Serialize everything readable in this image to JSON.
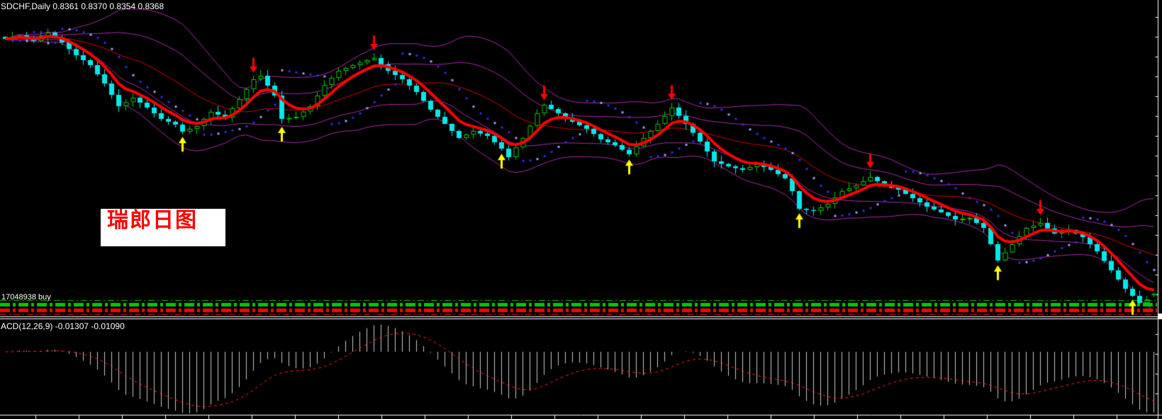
{
  "window": {
    "title_overlay": "SDCHF,Daily 0.8361 0.8370 0.8354 0.8368"
  },
  "main_chart": {
    "order_label": "17048938 buy",
    "annotation_text": "瑞郎日图"
  },
  "macd_panel": {
    "label": "ACD(12,26,9) -0.01307 -0.01090"
  },
  "colors": {
    "background": "#000000",
    "bull_candle": "#00c800",
    "bear_candle": "#00e8e8",
    "ma_thick_red": "#ff0000",
    "ma_mid_thin_red": "#d40000",
    "bollinger_purple": "#a82ca8",
    "sar_dot_dim": "#2d2de0",
    "sar_dot_bright": "#9b9bff",
    "macd_histogram": "#c8c8c8",
    "macd_signal_red": "#ff2020",
    "strip_green": "#00c800",
    "strip_red": "#ff0000",
    "arrow_up_yellow": "#ffff00",
    "arrow_down_red": "#ff0000",
    "text_white": "#ffffff",
    "annotation_text_red": "#ff0000",
    "annotation_bg_white": "#ffffff",
    "separator_white": "#ffffff"
  },
  "chart_data": {
    "type": "candlestick",
    "pair_title": "SDCHF,Daily",
    "ohlc_display": {
      "open": 0.8361,
      "high": 0.837,
      "low": 0.8354,
      "close": 0.8368
    },
    "closes": [
      0.9448,
      0.9455,
      0.9463,
      0.945,
      0.9439,
      0.946,
      0.9475,
      0.9455,
      0.9433,
      0.9405,
      0.9379,
      0.9358,
      0.9337,
      0.9298,
      0.9259,
      0.9211,
      0.9163,
      0.918,
      0.9199,
      0.9178,
      0.9157,
      0.9133,
      0.9109,
      0.9097,
      0.9085,
      0.9055,
      0.9067,
      0.9079,
      0.9109,
      0.9139,
      0.9127,
      0.9115,
      0.9154,
      0.9193,
      0.9235,
      0.9277,
      0.9292,
      0.925,
      0.9208,
      0.9109,
      0.9113,
      0.9118,
      0.914,
      0.9163,
      0.9208,
      0.9253,
      0.9283,
      0.9313,
      0.9325,
      0.9337,
      0.9348,
      0.9358,
      0.9367,
      0.934,
      0.9313,
      0.9295,
      0.9277,
      0.925,
      0.9223,
      0.9185,
      0.9148,
      0.9118,
      0.9088,
      0.9058,
      0.9028,
      0.9043,
      0.9058,
      0.9047,
      0.9037,
      0.901,
      0.8983,
      0.8947,
      0.8988,
      0.9028,
      0.908,
      0.9133,
      0.9169,
      0.9151,
      0.9133,
      0.9115,
      0.9097,
      0.9082,
      0.9067,
      0.9045,
      0.9022,
      0.901,
      0.8998,
      0.8978,
      0.8959,
      0.8993,
      0.9028,
      0.9058,
      0.9088,
      0.9122,
      0.9157,
      0.9122,
      0.9088,
      0.905,
      0.9013,
      0.8971,
      0.8929,
      0.8918,
      0.8908,
      0.89,
      0.8893,
      0.8905,
      0.8917,
      0.8905,
      0.8893,
      0.8875,
      0.8857,
      0.8803,
      0.8728,
      0.8723,
      0.8719,
      0.8734,
      0.8749,
      0.8776,
      0.8803,
      0.8815,
      0.8827,
      0.8845,
      0.8863,
      0.8845,
      0.8827,
      0.8818,
      0.8809,
      0.8791,
      0.8773,
      0.8755,
      0.8737,
      0.8725,
      0.8713,
      0.8698,
      0.8683,
      0.8686,
      0.8689,
      0.8668,
      0.8647,
      0.8578,
      0.8509,
      0.8543,
      0.8578,
      0.8612,
      0.8647,
      0.8657,
      0.8668,
      0.8645,
      0.8623,
      0.863,
      0.8638,
      0.8623,
      0.8608,
      0.8578,
      0.8548,
      0.8507,
      0.8467,
      0.8428,
      0.8389,
      0.8359,
      0.8329,
      0.8344,
      0.8368
    ],
    "signal_arrows": {
      "up_indices": [
        25,
        39,
        70,
        88,
        112,
        140,
        159
      ],
      "down_indices": [
        35,
        52,
        76,
        94,
        122,
        146
      ]
    },
    "overlays": [
      "bollinger-bands-purple-1sd-2sd",
      "middle-band-thin-red",
      "fast-ma-thick-red",
      "parabolic-sar-blue-dots",
      "trend-strip-green-red-dashes"
    ],
    "macd": {
      "type": "macd",
      "params": [
        12,
        26,
        9
      ],
      "macd_value": -0.01307,
      "signal_value": -0.0109
    }
  }
}
